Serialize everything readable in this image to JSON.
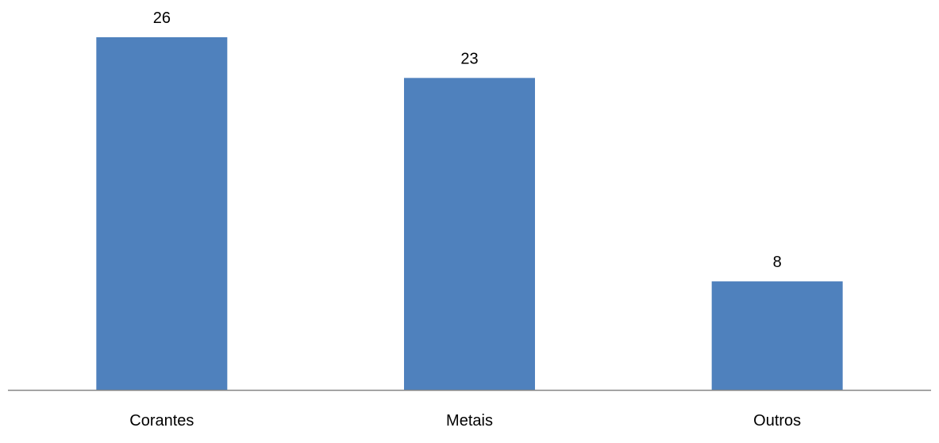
{
  "chart_data": {
    "type": "bar",
    "categories": [
      "Corantes",
      "Metais",
      "Outros"
    ],
    "values": [
      26,
      23,
      8
    ],
    "title": "",
    "xlabel": "",
    "ylabel": "",
    "ylim": [
      0,
      26
    ],
    "grid": false,
    "legend": "none",
    "data_labels": true,
    "bar_color": "#4F81BD",
    "axis_color": "#868686"
  }
}
